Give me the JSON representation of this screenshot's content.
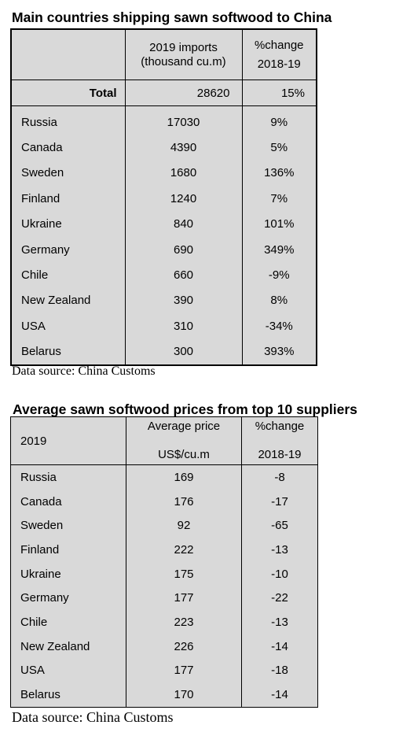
{
  "table1": {
    "title": "Main countries shipping sawn softwood to China",
    "header": {
      "imports_line1": "2019 imports",
      "imports_line2": "(thousand cu.m)",
      "change_line1": "%change",
      "change_line2": "2018-19"
    },
    "total": {
      "label": "Total",
      "imports": "28620",
      "change": "15%"
    },
    "rows": [
      {
        "country": "Russia",
        "imports": "17030",
        "change": "9%"
      },
      {
        "country": "Canada",
        "imports": "4390",
        "change": "5%"
      },
      {
        "country": "Sweden",
        "imports": "1680",
        "change": "136%"
      },
      {
        "country": "Finland",
        "imports": "1240",
        "change": "7%"
      },
      {
        "country": "Ukraine",
        "imports": "840",
        "change": "101%"
      },
      {
        "country": "Germany",
        "imports": "690",
        "change": "349%"
      },
      {
        "country": "Chile",
        "imports": "660",
        "change": "-9%"
      },
      {
        "country": "New Zealand",
        "imports": "390",
        "change": "8%"
      },
      {
        "country": "USA",
        "imports": "310",
        "change": "-34%"
      },
      {
        "country": "Belarus",
        "imports": "300",
        "change": "393%"
      }
    ],
    "source": "Data source: China Customs"
  },
  "table2": {
    "title": "Average sawn softwood prices from top 10 suppliers",
    "header": {
      "year": "2019",
      "price_line1": "Average price",
      "price_line2": "US$/cu.m",
      "change_line1": "%change",
      "change_line2": "2018-19"
    },
    "rows": [
      {
        "country": "Russia",
        "price": "169",
        "change": "-8"
      },
      {
        "country": "Canada",
        "price": "176",
        "change": "-17"
      },
      {
        "country": "Sweden",
        "price": "92",
        "change": "-65"
      },
      {
        "country": "Finland",
        "price": "222",
        "change": "-13"
      },
      {
        "country": "Ukraine",
        "price": "175",
        "change": "-10"
      },
      {
        "country": "Germany",
        "price": "177",
        "change": "-22"
      },
      {
        "country": "Chile",
        "price": "223",
        "change": "-13"
      },
      {
        "country": "New Zealand",
        "price": "226",
        "change": "-14"
      },
      {
        "country": "USA",
        "price": "177",
        "change": "-18"
      },
      {
        "country": "Belarus",
        "price": "170",
        "change": "-14"
      }
    ],
    "source": "Data source: China Customs"
  }
}
